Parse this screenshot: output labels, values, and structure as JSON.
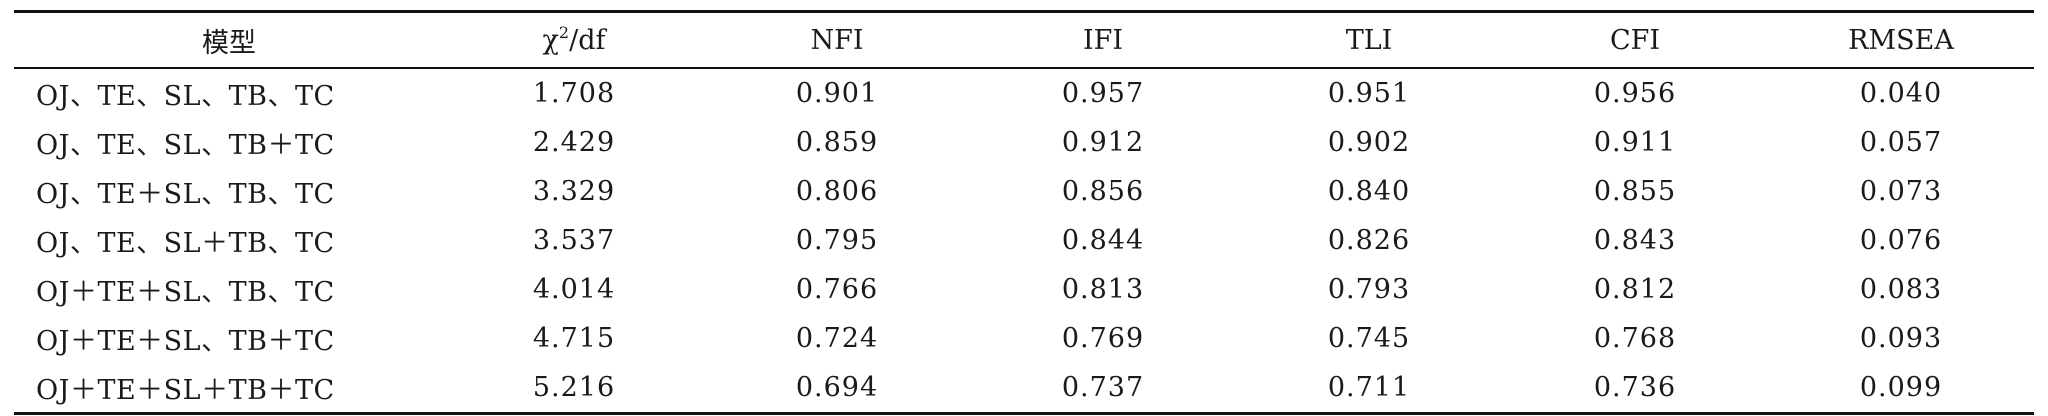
{
  "table": {
    "headers": {
      "model": "模型",
      "chi_symbol": "χ",
      "chi_sup": "2",
      "chi_rest": "/df",
      "nfi": "NFI",
      "ifi": "IFI",
      "tli": "TLI",
      "cfi": "CFI",
      "rmsea": "RMSEA"
    },
    "rows": [
      [
        "OJ、TE、SL、TB、TC",
        "1.708",
        "0.901",
        "0.957",
        "0.951",
        "0.956",
        "0.040"
      ],
      [
        "OJ、TE、SL、TB＋TC",
        "2.429",
        "0.859",
        "0.912",
        "0.902",
        "0.911",
        "0.057"
      ],
      [
        "OJ、TE＋SL、TB、TC",
        "3.329",
        "0.806",
        "0.856",
        "0.840",
        "0.855",
        "0.073"
      ],
      [
        "OJ、TE、SL＋TB、TC",
        "3.537",
        "0.795",
        "0.844",
        "0.826",
        "0.843",
        "0.076"
      ],
      [
        "OJ＋TE＋SL、TB、TC",
        "4.014",
        "0.766",
        "0.813",
        "0.793",
        "0.812",
        "0.083"
      ],
      [
        "OJ＋TE＋SL、TB＋TC",
        "4.715",
        "0.724",
        "0.769",
        "0.745",
        "0.768",
        "0.093"
      ],
      [
        "OJ＋TE＋SL＋TB＋TC",
        "5.216",
        "0.694",
        "0.737",
        "0.711",
        "0.736",
        "0.099"
      ]
    ]
  }
}
